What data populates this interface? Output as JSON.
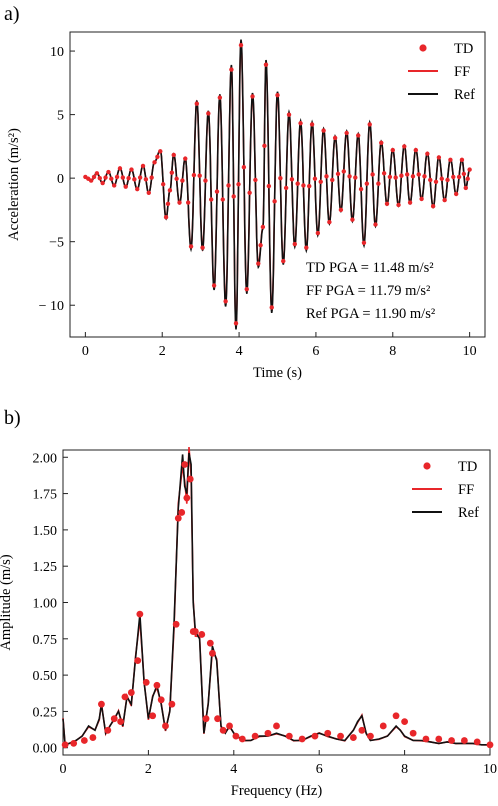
{
  "chart_data": [
    {
      "id": "a",
      "panel_label": "a)",
      "type": "line",
      "xlabel": "Time (s)",
      "ylabel": "Acceleration (m/s²)",
      "xlim": [
        -0.4,
        10.4
      ],
      "ylim": [
        -12.5,
        11.5
      ],
      "xticks": [
        0,
        2,
        4,
        6,
        8,
        10
      ],
      "yticks": [
        -10,
        -5,
        0,
        5,
        10
      ],
      "ytick_labels": [
        "− 10",
        "−5",
        "0",
        "5",
        "10"
      ],
      "grid": false,
      "legend_position": "top-right",
      "legend": [
        "TD",
        "FF",
        "Ref"
      ],
      "series_style": [
        {
          "name": "TD",
          "marker": "dot",
          "color": "#e8262a"
        },
        {
          "name": "FF",
          "line": "solid",
          "color": "#e8262a"
        },
        {
          "name": "Ref",
          "line": "solid",
          "color": "#111111"
        }
      ],
      "annotations": [
        "TD PGA = 11.48 m/s²",
        "FF PGA = 11.79 m/s²",
        "Ref PGA = 11.90 m/s²"
      ],
      "x_sample": [
        0.0,
        0.25,
        0.5,
        0.75,
        1.0,
        1.25,
        1.5,
        1.75,
        2.0,
        2.25,
        2.5,
        2.75,
        3.0,
        3.25,
        3.5,
        3.75,
        4.0,
        4.25,
        4.5,
        4.75,
        5.0,
        5.25,
        5.5,
        5.75,
        6.0,
        6.25,
        6.5,
        6.75,
        7.0,
        7.25,
        7.5,
        7.75,
        8.0,
        8.25,
        8.5,
        8.75,
        9.0,
        9.25,
        9.5,
        9.75,
        10.0
      ],
      "series": [
        {
          "name": "Ref",
          "peaks": [
            [
              0.0,
              0.1
            ],
            [
              0.15,
              -0.2
            ],
            [
              0.3,
              0.4
            ],
            [
              0.45,
              -0.4
            ],
            [
              0.6,
              0.5
            ],
            [
              0.75,
              -0.6
            ],
            [
              0.9,
              0.8
            ],
            [
              1.05,
              -0.7
            ],
            [
              1.2,
              0.7
            ],
            [
              1.35,
              -0.9
            ],
            [
              1.5,
              1.0
            ],
            [
              1.65,
              -1.2
            ],
            [
              1.8,
              1.3
            ],
            [
              1.95,
              2.2
            ],
            [
              2.1,
              -3.2
            ],
            [
              2.2,
              -1.0
            ],
            [
              2.3,
              1.9
            ],
            [
              2.45,
              -2.0
            ],
            [
              2.6,
              1.6
            ],
            [
              2.75,
              -5.6
            ],
            [
              2.9,
              6.1
            ],
            [
              3.05,
              -5.7
            ],
            [
              3.2,
              5.3
            ],
            [
              3.35,
              -8.8
            ],
            [
              3.5,
              6.6
            ],
            [
              3.65,
              -10.1
            ],
            [
              3.8,
              8.9
            ],
            [
              3.92,
              -11.9
            ],
            [
              4.05,
              10.9
            ],
            [
              4.2,
              -9.1
            ],
            [
              4.35,
              6.7
            ],
            [
              4.5,
              -7.0
            ],
            [
              4.62,
              -4.0
            ],
            [
              4.7,
              9.3
            ],
            [
              4.85,
              -10.6
            ],
            [
              5.0,
              6.8
            ],
            [
              5.15,
              -6.8
            ],
            [
              5.3,
              5.2
            ],
            [
              5.45,
              -5.4
            ],
            [
              5.6,
              4.5
            ],
            [
              5.75,
              -5.7
            ],
            [
              5.9,
              4.4
            ],
            [
              6.05,
              -4.5
            ],
            [
              6.2,
              3.9
            ],
            [
              6.35,
              -3.6
            ],
            [
              6.5,
              3.3
            ],
            [
              6.65,
              -2.6
            ],
            [
              6.8,
              3.7
            ],
            [
              6.95,
              -3.4
            ],
            [
              7.1,
              3.5
            ],
            [
              7.25,
              -5.3
            ],
            [
              7.4,
              4.4
            ],
            [
              7.55,
              -3.8
            ],
            [
              7.7,
              2.9
            ],
            [
              7.85,
              -2.1
            ],
            [
              8.0,
              2.3
            ],
            [
              8.15,
              -2.2
            ],
            [
              8.3,
              2.6
            ],
            [
              8.45,
              -2.0
            ],
            [
              8.6,
              2.3
            ],
            [
              8.75,
              -1.7
            ],
            [
              8.9,
              2.0
            ],
            [
              9.05,
              -2.3
            ],
            [
              9.2,
              1.7
            ],
            [
              9.35,
              -1.8
            ],
            [
              9.5,
              1.5
            ],
            [
              9.65,
              -1.3
            ],
            [
              9.8,
              1.5
            ],
            [
              9.9,
              -0.8
            ],
            [
              10.0,
              0.7
            ]
          ]
        },
        {
          "name": "TD",
          "pga": 11.48
        },
        {
          "name": "FF",
          "pga": 11.79
        }
      ]
    },
    {
      "id": "b",
      "panel_label": "b)",
      "type": "line",
      "xlabel": "Frequency (Hz)",
      "ylabel": "Amplitude (m/s)",
      "xlim": [
        0,
        10
      ],
      "ylim": [
        -0.05,
        2.05
      ],
      "xticks": [
        0,
        2,
        4,
        6,
        8,
        10
      ],
      "yticks": [
        0.0,
        0.25,
        0.5,
        0.75,
        1.0,
        1.25,
        1.5,
        1.75,
        2.0
      ],
      "ytick_labels": [
        "0.00",
        "0.25",
        "0.50",
        "0.75",
        "1.00",
        "1.25",
        "1.50",
        "1.75",
        "2.00"
      ],
      "grid": false,
      "legend_position": "top-right",
      "legend": [
        "TD",
        "FF",
        "Ref"
      ],
      "series_style": [
        {
          "name": "TD",
          "marker": "dot",
          "color": "#e8262a"
        },
        {
          "name": "FF",
          "line": "solid",
          "color": "#e8262a"
        },
        {
          "name": "Ref",
          "line": "solid",
          "color": "#111111"
        }
      ],
      "series": [
        {
          "name": "Ref",
          "x": [
            0.0,
            0.05,
            0.15,
            0.3,
            0.45,
            0.6,
            0.75,
            0.85,
            0.9,
            1.0,
            1.1,
            1.2,
            1.3,
            1.4,
            1.5,
            1.6,
            1.7,
            1.8,
            1.9,
            2.0,
            2.1,
            2.2,
            2.3,
            2.4,
            2.5,
            2.6,
            2.7,
            2.8,
            2.85,
            2.9,
            2.95,
            3.0,
            3.05,
            3.1,
            3.2,
            3.3,
            3.4,
            3.5,
            3.6,
            3.7,
            3.8,
            3.9,
            4.0,
            4.2,
            4.4,
            4.6,
            4.8,
            5.0,
            5.2,
            5.4,
            5.6,
            5.8,
            6.0,
            6.2,
            6.4,
            6.6,
            6.8,
            6.9,
            7.0,
            7.1,
            7.2,
            7.4,
            7.6,
            7.8,
            7.9,
            8.0,
            8.2,
            8.4,
            8.6,
            8.8,
            9.0,
            9.2,
            9.4,
            9.6,
            9.8,
            10.0
          ],
          "y": [
            0.2,
            0.02,
            0.03,
            0.05,
            0.08,
            0.15,
            0.12,
            0.2,
            0.3,
            0.1,
            0.15,
            0.2,
            0.25,
            0.15,
            0.35,
            0.3,
            0.62,
            0.92,
            0.45,
            0.2,
            0.35,
            0.43,
            0.3,
            0.12,
            0.25,
            0.85,
            1.65,
            2.02,
            1.8,
            1.75,
            2.03,
            1.95,
            1.0,
            0.8,
            0.75,
            0.1,
            0.3,
            0.7,
            0.6,
            0.15,
            0.1,
            0.15,
            0.1,
            0.05,
            0.05,
            0.08,
            0.08,
            0.1,
            0.08,
            0.05,
            0.05,
            0.08,
            0.1,
            0.08,
            0.06,
            0.05,
            0.12,
            0.18,
            0.22,
            0.1,
            0.05,
            0.06,
            0.08,
            0.15,
            0.12,
            0.08,
            0.05,
            0.05,
            0.04,
            0.03,
            0.04,
            0.03,
            0.03,
            0.03,
            0.02,
            0.02
          ]
        },
        {
          "name": "TD",
          "x": [
            0.05,
            0.25,
            0.5,
            0.7,
            0.9,
            1.05,
            1.2,
            1.35,
            1.45,
            1.6,
            1.75,
            1.8,
            1.95,
            2.1,
            2.2,
            2.3,
            2.4,
            2.55,
            2.65,
            2.7,
            2.78,
            2.85,
            2.9,
            2.98,
            3.05,
            3.1,
            3.25,
            3.35,
            3.45,
            3.5,
            3.62,
            3.75,
            3.9,
            4.05,
            4.2,
            4.5,
            4.8,
            5.0,
            5.3,
            5.6,
            5.9,
            6.2,
            6.5,
            6.8,
            7.0,
            7.2,
            7.5,
            7.8,
            8.0,
            8.2,
            8.5,
            8.8,
            9.1,
            9.4,
            9.7,
            10.0
          ],
          "y": [
            0.02,
            0.03,
            0.05,
            0.07,
            0.3,
            0.12,
            0.2,
            0.18,
            0.35,
            0.38,
            0.6,
            0.92,
            0.45,
            0.22,
            0.43,
            0.33,
            0.15,
            0.3,
            0.85,
            1.58,
            1.62,
            1.95,
            1.72,
            1.85,
            0.8,
            0.8,
            0.78,
            0.2,
            0.72,
            0.65,
            0.2,
            0.12,
            0.15,
            0.08,
            0.06,
            0.08,
            0.1,
            0.15,
            0.08,
            0.06,
            0.08,
            0.1,
            0.08,
            0.07,
            0.12,
            0.08,
            0.15,
            0.22,
            0.18,
            0.1,
            0.06,
            0.06,
            0.05,
            0.05,
            0.04,
            0.02
          ]
        },
        {
          "name": "FF"
        }
      ]
    }
  ]
}
